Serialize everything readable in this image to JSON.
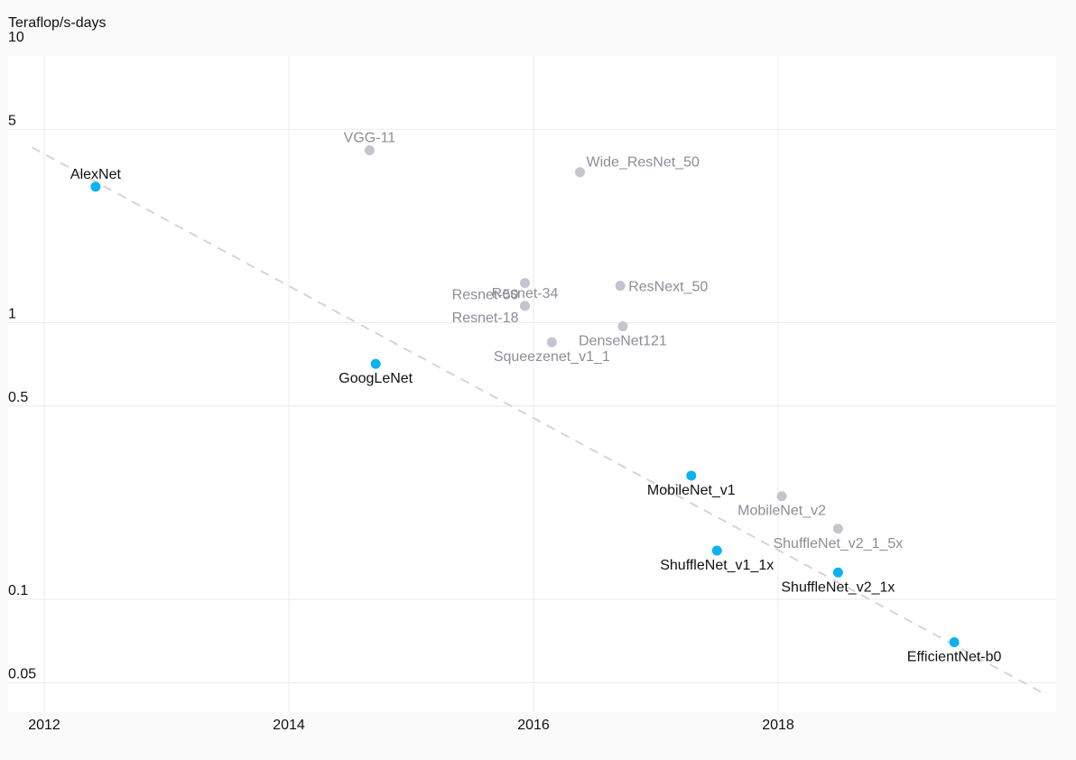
{
  "chart_data": {
    "type": "scatter",
    "title": "",
    "xlabel": "",
    "ylabel": "Teraflop/s-days",
    "y_scale": "log",
    "xlim": [
      2011.9,
      2020.2
    ],
    "ylim": [
      0.04,
      10
    ],
    "x_ticks": [
      2012,
      2014,
      2016,
      2018
    ],
    "x_tick_labels": [
      "2012",
      "2014",
      "2016",
      "2018"
    ],
    "y_ticks": [
      0.05,
      0.1,
      0.5,
      1,
      5,
      10
    ],
    "y_tick_labels": [
      "0.05",
      "0.1",
      "0.5",
      "1",
      "5",
      "10"
    ],
    "grid": true,
    "colors": {
      "highlight": "#0ab3ef",
      "other": "#c5c3ce",
      "highlight_label": "#111111",
      "other_label": "#8f8c97",
      "trend": "#d5d5d9"
    },
    "trend_line": [
      [
        2011.9,
        4.3
      ],
      [
        2020.2,
        0.045
      ]
    ],
    "points": [
      {
        "name": "AlexNet",
        "x": 2012.42,
        "y": 3.1,
        "group": "highlight",
        "label_pos": "above"
      },
      {
        "name": "VGG-11",
        "x": 2014.66,
        "y": 4.2,
        "group": "other",
        "label_pos": "above"
      },
      {
        "name": "GoogLeNet",
        "x": 2014.71,
        "y": 0.71,
        "group": "highlight",
        "label_pos": "below"
      },
      {
        "name": "Resnet-50",
        "x": 2015.93,
        "y": 1.39,
        "group": "other",
        "label_pos": "below-left"
      },
      {
        "name": "Resnet-34",
        "x": 2015.93,
        "y": 1.15,
        "group": "other",
        "label_pos": "above"
      },
      {
        "name": "Resnet-18",
        "x": 2015.93,
        "y": 1.15,
        "group": "other",
        "label_pos": "below-left"
      },
      {
        "name": "Squeezenet_v1_1",
        "x": 2016.15,
        "y": 0.85,
        "group": "other",
        "label_pos": "below"
      },
      {
        "name": "Wide_ResNet_50",
        "x": 2016.38,
        "y": 3.5,
        "group": "other",
        "label_pos": "above-right"
      },
      {
        "name": "ResNext_50",
        "x": 2016.71,
        "y": 1.36,
        "group": "other",
        "label_pos": "right"
      },
      {
        "name": "DenseNet121",
        "x": 2016.73,
        "y": 0.97,
        "group": "other",
        "label_pos": "below"
      },
      {
        "name": "MobileNet_v1",
        "x": 2017.29,
        "y": 0.28,
        "group": "highlight",
        "label_pos": "below"
      },
      {
        "name": "ShuffleNet_v1_1x",
        "x": 2017.5,
        "y": 0.15,
        "group": "highlight",
        "label_pos": "below"
      },
      {
        "name": "MobileNet_v2",
        "x": 2018.03,
        "y": 0.236,
        "group": "other",
        "label_pos": "below"
      },
      {
        "name": "ShuffleNet_v2_1_5x",
        "x": 2018.49,
        "y": 0.18,
        "group": "other",
        "label_pos": "below"
      },
      {
        "name": "ShuffleNet_v2_1x",
        "x": 2018.49,
        "y": 0.125,
        "group": "highlight",
        "label_pos": "below"
      },
      {
        "name": "EfficientNet-b0",
        "x": 2019.44,
        "y": 0.07,
        "group": "highlight",
        "label_pos": "below"
      }
    ]
  }
}
